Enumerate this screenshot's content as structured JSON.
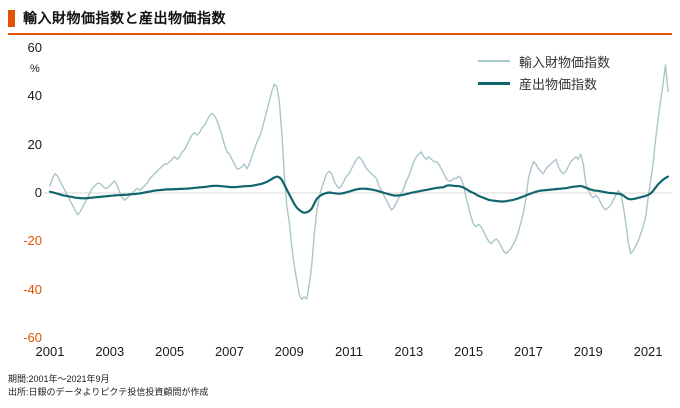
{
  "header": {
    "title": "輸入財物価指数と産出物価指数"
  },
  "footer": {
    "line1": "期間:2001年〜2021年9月",
    "line2": "出所:日銀のデータよりピクテ投信投資顧問が作成"
  },
  "colors": {
    "accent": "#e25303",
    "negative_tick": "#e25303",
    "series_light": "#a9c6c9",
    "series_dark": "#11666d",
    "zero_line": "#d9d9d9"
  },
  "chart_data": {
    "type": "line",
    "title": "輸入財物価指数と産出物価指数",
    "xlabel": "",
    "ylabel": "%",
    "ylim": [
      -60,
      60
    ],
    "yticks": [
      60,
      40,
      20,
      0,
      -20,
      -40,
      -60
    ],
    "xticks": [
      2001,
      2003,
      2005,
      2007,
      2009,
      2011,
      2013,
      2015,
      2017,
      2019,
      2021
    ],
    "x_frequency": "monthly",
    "x_start": "2001-01",
    "x_end": "2021-09",
    "grid": "zero-line-only",
    "legend_position": "top-right",
    "series": [
      {
        "name": "輸入財物価指数",
        "color": "#a9c6c9",
        "values": [
          3,
          6,
          8,
          7,
          5,
          3,
          1,
          -1,
          -3,
          -5,
          -7,
          -9,
          -8,
          -6,
          -4,
          -2,
          0,
          2,
          3,
          4,
          4,
          3,
          2,
          2,
          3,
          4,
          5,
          3,
          0,
          -2,
          -3,
          -2,
          -1,
          0,
          1,
          2,
          1,
          2,
          3,
          4,
          6,
          7,
          8,
          9,
          10,
          11,
          12,
          12,
          13,
          14,
          15,
          14,
          15,
          17,
          18,
          20,
          22,
          24,
          25,
          24,
          25,
          27,
          28,
          30,
          32,
          33,
          32,
          30,
          27,
          24,
          20,
          17,
          16,
          14,
          12,
          10,
          10,
          11,
          12,
          10,
          12,
          15,
          18,
          21,
          23,
          26,
          30,
          34,
          38,
          42,
          45,
          44,
          38,
          25,
          8,
          -5,
          -12,
          -22,
          -30,
          -36,
          -42,
          -44,
          -43,
          -44,
          -38,
          -30,
          -18,
          -8,
          -2,
          2,
          5,
          8,
          9,
          8,
          5,
          3,
          2,
          3,
          5,
          7,
          8,
          10,
          12,
          14,
          15,
          14,
          12,
          10,
          9,
          8,
          7,
          6,
          3,
          1,
          -1,
          -3,
          -5,
          -7,
          -6,
          -4,
          -2,
          0,
          2,
          5,
          7,
          10,
          13,
          15,
          16,
          17,
          15,
          14,
          15,
          14,
          13,
          13,
          12,
          10,
          8,
          6,
          5,
          5,
          6,
          6,
          7,
          6,
          3,
          -2,
          -6,
          -10,
          -13,
          -14,
          -13,
          -14,
          -16,
          -18,
          -20,
          -21,
          -20,
          -19,
          -20,
          -22,
          -24,
          -25,
          -24,
          -23,
          -21,
          -19,
          -16,
          -12,
          -8,
          -2,
          6,
          10,
          13,
          12,
          10,
          9,
          8,
          10,
          11,
          12,
          13,
          14,
          11,
          9,
          8,
          9,
          11,
          13,
          14,
          15,
          14,
          16,
          12,
          4,
          1,
          -1,
          -2,
          -1,
          -2,
          -4,
          -6,
          -7,
          -6,
          -5,
          -3,
          -1,
          1,
          0,
          -5,
          -12,
          -20,
          -25,
          -24,
          -22,
          -20,
          -17,
          -14,
          -10,
          -2,
          5,
          12,
          22,
          30,
          38,
          45,
          53,
          42
        ]
      },
      {
        "name": "産出物価指数",
        "color": "#11666d",
        "values": [
          0.5,
          0.3,
          0.0,
          -0.3,
          -0.6,
          -0.9,
          -1.1,
          -1.3,
          -1.5,
          -1.7,
          -1.9,
          -2.0,
          -2.1,
          -2.2,
          -2.2,
          -2.1,
          -2.0,
          -1.9,
          -1.8,
          -1.7,
          -1.6,
          -1.5,
          -1.4,
          -1.3,
          -1.2,
          -1.1,
          -1.0,
          -0.9,
          -0.9,
          -0.8,
          -0.8,
          -0.7,
          -0.6,
          -0.5,
          -0.4,
          -0.3,
          -0.2,
          0.0,
          0.2,
          0.4,
          0.6,
          0.8,
          1.0,
          1.1,
          1.2,
          1.3,
          1.4,
          1.5,
          1.5,
          1.5,
          1.6,
          1.6,
          1.7,
          1.7,
          1.8,
          1.8,
          1.9,
          2.0,
          2.1,
          2.2,
          2.3,
          2.4,
          2.5,
          2.6,
          2.8,
          2.9,
          3.0,
          3.0,
          2.9,
          2.8,
          2.7,
          2.6,
          2.5,
          2.4,
          2.4,
          2.5,
          2.6,
          2.7,
          2.8,
          2.8,
          2.9,
          3.0,
          3.2,
          3.4,
          3.6,
          3.8,
          4.2,
          4.6,
          5.2,
          5.8,
          6.4,
          6.8,
          6.5,
          5.5,
          3.5,
          1.5,
          -0.5,
          -2.5,
          -4.5,
          -6.0,
          -7.0,
          -7.8,
          -8.2,
          -8.0,
          -7.5,
          -6.5,
          -4.5,
          -2.5,
          -1.5,
          -0.8,
          -0.3,
          0.0,
          0.2,
          0.1,
          -0.1,
          -0.2,
          -0.3,
          -0.2,
          0.0,
          0.3,
          0.6,
          0.9,
          1.2,
          1.5,
          1.7,
          1.8,
          1.8,
          1.7,
          1.6,
          1.4,
          1.2,
          1.0,
          0.7,
          0.4,
          0.1,
          -0.2,
          -0.5,
          -0.8,
          -1.0,
          -1.1,
          -1.0,
          -0.9,
          -0.7,
          -0.4,
          -0.2,
          0.1,
          0.3,
          0.5,
          0.7,
          0.9,
          1.1,
          1.3,
          1.5,
          1.7,
          1.9,
          2.1,
          2.2,
          2.3,
          2.4,
          3.0,
          3.2,
          3.1,
          3.0,
          2.9,
          2.8,
          2.6,
          2.2,
          1.6,
          1.0,
          0.4,
          0.0,
          -0.6,
          -1.2,
          -1.6,
          -2.0,
          -2.4,
          -2.8,
          -3.0,
          -3.2,
          -3.3,
          -3.4,
          -3.5,
          -3.5,
          -3.4,
          -3.2,
          -3.0,
          -2.8,
          -2.5,
          -2.2,
          -1.8,
          -1.4,
          -1.0,
          -0.6,
          -0.2,
          0.2,
          0.5,
          0.8,
          1.0,
          1.1,
          1.2,
          1.3,
          1.4,
          1.5,
          1.6,
          1.7,
          1.8,
          1.9,
          2.0,
          2.2,
          2.4,
          2.6,
          2.7,
          2.8,
          2.9,
          2.6,
          2.2,
          1.8,
          1.4,
          1.1,
          1.0,
          0.9,
          0.7,
          0.5,
          0.3,
          0.1,
          0.0,
          -0.1,
          -0.2,
          -0.3,
          -0.5,
          -1.0,
          -1.8,
          -2.4,
          -2.6,
          -2.5,
          -2.3,
          -2.0,
          -1.8,
          -1.5,
          -1.2,
          -0.8,
          -0.2,
          0.8,
          2.2,
          3.5,
          4.5,
          5.5,
          6.2,
          6.8
        ]
      }
    ]
  }
}
